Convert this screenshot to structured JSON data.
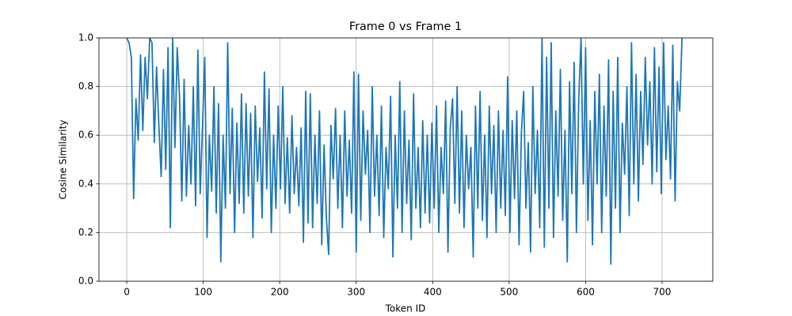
{
  "chart_data": {
    "type": "line",
    "title": "Frame 0 vs Frame 1",
    "xlabel": "Token ID",
    "ylabel": "Cosine Similarity",
    "color": "#1f77b4",
    "grid": true,
    "xlim": [
      -36.3,
      766.3
    ],
    "ylim": [
      0,
      1
    ],
    "xticks": [
      0,
      100,
      200,
      300,
      400,
      500,
      600,
      700
    ],
    "yticks": [
      {
        "value": 0,
        "label": "0.0"
      },
      {
        "value": 0.2,
        "label": "0.2"
      },
      {
        "value": 0.4,
        "label": "0.4"
      },
      {
        "value": 0.6,
        "label": "0.6"
      },
      {
        "value": 0.8,
        "label": "0.8"
      },
      {
        "value": 1,
        "label": "1.0"
      }
    ],
    "x": [
      0,
      3,
      6,
      9,
      12,
      15,
      18,
      21,
      24,
      27,
      30,
      33,
      36,
      39,
      42,
      45,
      48,
      51,
      54,
      57,
      60,
      63,
      66,
      69,
      72,
      75,
      78,
      81,
      84,
      87,
      90,
      93,
      96,
      99,
      102,
      105,
      108,
      111,
      114,
      117,
      120,
      123,
      126,
      129,
      132,
      135,
      138,
      141,
      144,
      147,
      150,
      153,
      156,
      159,
      162,
      165,
      168,
      171,
      174,
      177,
      180,
      183,
      186,
      189,
      192,
      195,
      198,
      201,
      204,
      207,
      210,
      213,
      216,
      219,
      222,
      225,
      228,
      231,
      234,
      237,
      240,
      243,
      246,
      249,
      252,
      255,
      258,
      261,
      264,
      267,
      270,
      273,
      276,
      279,
      282,
      285,
      288,
      291,
      294,
      297,
      300,
      303,
      306,
      309,
      312,
      315,
      318,
      321,
      324,
      327,
      330,
      333,
      336,
      339,
      342,
      345,
      348,
      351,
      354,
      357,
      360,
      363,
      366,
      369,
      372,
      375,
      378,
      381,
      384,
      387,
      390,
      393,
      396,
      399,
      402,
      405,
      408,
      411,
      414,
      417,
      420,
      423,
      426,
      429,
      432,
      435,
      438,
      441,
      444,
      447,
      450,
      453,
      456,
      459,
      462,
      465,
      468,
      471,
      474,
      477,
      480,
      483,
      486,
      489,
      492,
      495,
      498,
      501,
      504,
      507,
      510,
      513,
      516,
      519,
      522,
      525,
      528,
      531,
      534,
      537,
      540,
      543,
      546,
      549,
      552,
      555,
      558,
      561,
      564,
      567,
      570,
      573,
      576,
      579,
      582,
      585,
      588,
      591,
      594,
      597,
      600,
      603,
      606,
      609,
      612,
      615,
      618,
      621,
      624,
      627,
      630,
      633,
      636,
      639,
      642,
      645,
      648,
      651,
      654,
      657,
      660,
      663,
      666,
      669,
      672,
      675,
      678,
      681,
      684,
      687,
      690,
      693,
      696,
      699,
      702,
      705,
      708,
      711,
      714,
      717,
      720,
      723,
      726
    ],
    "values": [
      1.0,
      0.98,
      0.92,
      0.34,
      0.75,
      0.58,
      0.93,
      0.62,
      0.92,
      0.75,
      1.0,
      0.98,
      0.57,
      0.88,
      0.64,
      0.43,
      0.87,
      0.46,
      0.96,
      0.22,
      1.0,
      0.55,
      0.96,
      0.76,
      0.33,
      0.83,
      0.35,
      0.64,
      0.4,
      0.8,
      0.31,
      0.95,
      0.36,
      0.63,
      0.92,
      0.18,
      0.6,
      0.37,
      0.8,
      0.28,
      0.73,
      0.08,
      0.6,
      0.3,
      0.98,
      0.36,
      0.71,
      0.2,
      0.65,
      0.32,
      0.77,
      0.28,
      0.73,
      0.35,
      0.69,
      0.18,
      0.72,
      0.41,
      0.63,
      0.26,
      0.86,
      0.38,
      0.79,
      0.2,
      0.6,
      0.3,
      0.72,
      0.38,
      0.8,
      0.32,
      0.59,
      0.28,
      0.68,
      0.36,
      0.55,
      0.31,
      0.63,
      0.16,
      0.78,
      0.24,
      0.77,
      0.22,
      0.6,
      0.32,
      0.7,
      0.15,
      0.56,
      0.26,
      0.11,
      0.64,
      0.42,
      0.71,
      0.3,
      0.6,
      0.22,
      0.7,
      0.35,
      0.58,
      0.28,
      0.86,
      0.12,
      0.85,
      0.25,
      0.7,
      0.44,
      0.62,
      0.2,
      0.8,
      0.35,
      0.6,
      0.27,
      0.72,
      0.18,
      0.55,
      0.38,
      0.76,
      0.1,
      0.6,
      0.3,
      0.82,
      0.2,
      0.7,
      0.32,
      0.58,
      0.17,
      0.77,
      0.3,
      0.55,
      0.22,
      0.66,
      0.28,
      0.6,
      0.24,
      0.65,
      0.3,
      0.72,
      0.2,
      0.55,
      0.36,
      0.74,
      0.12,
      0.63,
      0.75,
      0.32,
      0.8,
      0.28,
      0.7,
      0.22,
      0.6,
      0.38,
      0.55,
      0.1,
      0.72,
      0.3,
      0.78,
      0.25,
      0.6,
      0.18,
      0.72,
      0.36,
      0.64,
      0.2,
      0.7,
      0.3,
      0.62,
      0.27,
      0.84,
      0.2,
      0.66,
      0.34,
      0.7,
      0.15,
      0.61,
      0.78,
      0.3,
      0.57,
      0.12,
      0.8,
      0.36,
      0.62,
      0.22,
      1.0,
      0.14,
      0.92,
      0.3,
      0.98,
      0.18,
      0.7,
      0.35,
      0.87,
      0.25,
      0.62,
      0.08,
      0.82,
      0.36,
      0.9,
      0.2,
      0.75,
      1.0,
      0.4,
      0.96,
      0.25,
      0.66,
      0.15,
      0.78,
      0.4,
      0.85,
      0.2,
      0.72,
      0.35,
      0.91,
      0.07,
      0.78,
      0.3,
      0.92,
      0.2,
      0.65,
      0.44,
      0.8,
      0.27,
      0.98,
      0.4,
      0.85,
      0.33,
      0.78,
      0.48,
      0.92,
      0.56,
      0.82,
      0.4,
      0.96,
      0.45,
      0.88,
      0.36,
      0.98,
      0.5,
      0.72,
      0.42,
      0.97,
      0.33,
      0.82,
      0.7,
      1.0
    ]
  }
}
